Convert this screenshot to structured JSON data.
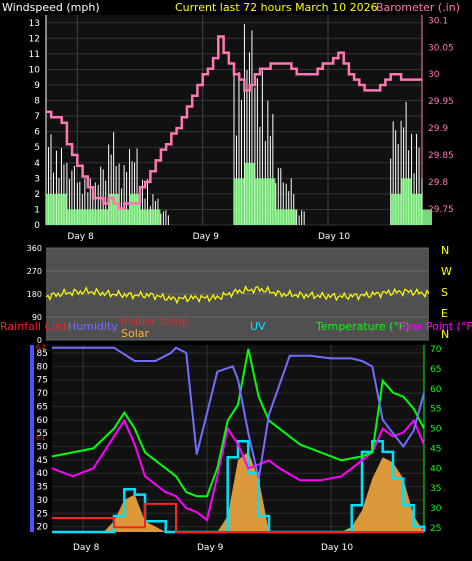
{
  "header": {
    "left_title": "Windspeed (mph)",
    "center_title": "Current last 72 hours March 10 2026",
    "right_title": "Barometer (.in)"
  },
  "legend": {
    "rainfall": "Rainfall (.in)",
    "humidity": "Humidity",
    "indoor_temp": "Indoor temp",
    "solar": "Solar",
    "uv": "UV",
    "temperature": "Temperature (°F)",
    "dew_point": "Dew Point (°F)"
  },
  "colors": {
    "background": "#000000",
    "plot_bg": "#111111",
    "title": "#ffff00",
    "barometer": "#ff78b4",
    "wind_gust": "#ffffff",
    "wind_avg": "#8cff8c",
    "direction": "#ffff00",
    "rainfall": "#ff2020",
    "humidity": "#7070ff",
    "indoor_temp": "#d83030",
    "solar": "#ffb040",
    "uv": "#00e0ff",
    "temperature": "#00ff00",
    "dew_point": "#ff00ff",
    "axis_blue": "#5050ff"
  },
  "chart_data": [
    {
      "type": "line",
      "title": "Windspeed (mph) / Barometer (.in)",
      "x_tick_labels": [
        "Day 8",
        "Day 9",
        "Day 10"
      ],
      "x_range_hours": [
        -72,
        0
      ],
      "left_axis": {
        "label": "Windspeed (mph)",
        "ticks": [
          0,
          1,
          2,
          3,
          4,
          5,
          6,
          7,
          8,
          9,
          10,
          11,
          12,
          13
        ],
        "range": [
          0,
          13.5
        ]
      },
      "right_axis": {
        "label": "Barometer (.in)",
        "ticks": [
          "29.75",
          "29.8",
          "29.85",
          "29.9",
          "29.95",
          "30",
          "30.05",
          "30.1"
        ],
        "range": [
          29.72,
          30.11
        ]
      },
      "series": [
        {
          "name": "Barometer (.in)",
          "axis": "right",
          "x": [
            -72,
            -71,
            -70,
            -69,
            -68,
            -67,
            -66,
            -65,
            -64,
            -63,
            -62,
            -61,
            -60,
            -59,
            -58,
            -57,
            -56,
            -55,
            -54,
            -53,
            -52,
            -51,
            -50,
            -49,
            -48,
            -47,
            -46,
            -45,
            -44,
            -43,
            -42,
            -41,
            -40,
            -39,
            -38,
            -37,
            -36,
            -35,
            -34,
            -33,
            -32,
            -31,
            -30,
            -29,
            -28,
            -27,
            -26,
            -25,
            -24,
            -23,
            -22,
            -21,
            -20,
            -19,
            -18,
            -17,
            -16,
            -15,
            -14,
            -13,
            -12,
            -11,
            -10,
            -9,
            -8,
            -7,
            -6,
            -5,
            -4,
            -3,
            -2,
            -1,
            0
          ],
          "values": [
            29.93,
            29.92,
            29.92,
            29.91,
            29.87,
            29.85,
            29.83,
            29.81,
            29.79,
            29.77,
            29.77,
            29.76,
            29.77,
            29.76,
            29.75,
            29.76,
            29.76,
            29.76,
            29.79,
            29.8,
            29.82,
            29.84,
            29.86,
            29.87,
            29.89,
            29.9,
            29.92,
            29.94,
            29.96,
            29.98,
            30,
            30.01,
            30.03,
            30.07,
            30.04,
            30.02,
            30,
            29.99,
            29.97,
            29.98,
            30.0,
            30.01,
            30.01,
            30.02,
            30.02,
            30.02,
            30.02,
            30.01,
            30.0,
            30.0,
            30.0,
            30.0,
            30.01,
            30.02,
            30.02,
            30.03,
            30.04,
            30.02,
            30.0,
            29.99,
            29.98,
            29.97,
            29.97,
            29.97,
            29.98,
            29.99,
            30.0,
            30.0,
            29.99,
            29.99,
            29.99,
            29.99,
            29.99
          ]
        },
        {
          "name": "Windspeed gust (mph)",
          "axis": "left",
          "x": [
            -72,
            -70,
            -68,
            -66,
            -64,
            -62,
            -60,
            -58,
            -56,
            -54,
            -52,
            -50,
            -48,
            -46,
            -44,
            -42,
            -40,
            -38,
            -36,
            -34,
            -32,
            -30,
            -28,
            -26,
            -24,
            -22,
            -20,
            -18,
            -16,
            -14,
            -12,
            -10,
            -8,
            -6,
            -4,
            -2,
            0
          ],
          "values": [
            6,
            5,
            4,
            3,
            3,
            4,
            6,
            4,
            5,
            3,
            2,
            1,
            0,
            0,
            0,
            0,
            0,
            0,
            10,
            13,
            10,
            8,
            4,
            3,
            1,
            0,
            0,
            0,
            0,
            0,
            0,
            0,
            0,
            7,
            8,
            6,
            3
          ]
        },
        {
          "name": "Windspeed average (mph)",
          "axis": "left",
          "x": [
            -72,
            -70,
            -68,
            -66,
            -64,
            -62,
            -60,
            -58,
            -56,
            -54,
            -52,
            -50,
            -48,
            -46,
            -44,
            -42,
            -40,
            -38,
            -36,
            -34,
            -32,
            -30,
            -28,
            -26,
            -24,
            -22,
            -20,
            -18,
            -16,
            -14,
            -12,
            -10,
            -8,
            -6,
            -4,
            -2,
            0
          ],
          "values": [
            2,
            2,
            1,
            1,
            1,
            1,
            2,
            1,
            2,
            1,
            1,
            0,
            0,
            0,
            0,
            0,
            0,
            0,
            3,
            4,
            3,
            3,
            1,
            1,
            0,
            0,
            0,
            0,
            0,
            0,
            0,
            0,
            0,
            2,
            3,
            2,
            1
          ]
        }
      ]
    },
    {
      "type": "line",
      "title": "Wind direction",
      "x_tick_labels": [
        "Day 8",
        "Day 9",
        "Day 10"
      ],
      "left_axis": {
        "ticks": [
          0,
          90,
          180,
          270,
          360
        ],
        "range": [
          0,
          360
        ]
      },
      "right_axis_labels": [
        "N",
        "W",
        "S",
        "E",
        "N"
      ],
      "series": [
        {
          "name": "Wind direction",
          "x": [
            -72,
            -68,
            -64,
            -60,
            -56,
            -52,
            -48,
            -44,
            -40,
            -36,
            -32,
            -28,
            -24,
            -20,
            -16,
            -12,
            -8,
            -4,
            0
          ],
          "values": [
            170,
            185,
            190,
            180,
            175,
            175,
            160,
            165,
            165,
            190,
            200,
            180,
            175,
            172,
            170,
            175,
            185,
            190,
            180
          ]
        }
      ]
    },
    {
      "type": "line",
      "title": "Temperature / Humidity / Rain / Solar",
      "x_tick_labels": [
        "Day 8",
        "Day 9",
        "Day 10"
      ],
      "left_axis_humidity": {
        "ticks": [
          20,
          25,
          30,
          35,
          40,
          45,
          50,
          55,
          60,
          65,
          70,
          75,
          80,
          85
        ],
        "range": [
          18,
          88
        ]
      },
      "left_axis_rain": {
        "ticks": [
          "0.1",
          "0.2"
        ]
      },
      "right_axis": {
        "label": "Temperature (°F)",
        "ticks": [
          25,
          30,
          35,
          40,
          45,
          50,
          55,
          60,
          65,
          70
        ],
        "range": [
          24,
          71
        ]
      },
      "series": [
        {
          "name": "Humidity",
          "axis": "left",
          "x": [
            -72,
            -66,
            -60,
            -56,
            -52,
            -49,
            -48,
            -46,
            -44,
            -40,
            -37,
            -36,
            -34,
            -32,
            -30,
            -26,
            -22,
            -18,
            -14,
            -12,
            -10,
            -8,
            -6,
            -4,
            -2,
            0
          ],
          "values": [
            87,
            87,
            87,
            82,
            82,
            85,
            87,
            85,
            47,
            78,
            80,
            75,
            55,
            38,
            62,
            84,
            84,
            83,
            83,
            82,
            80,
            60,
            55,
            50,
            56,
            70
          ]
        },
        {
          "name": "Temperature (°F)",
          "axis": "right",
          "x": [
            -72,
            -68,
            -64,
            -60,
            -58,
            -56,
            -54,
            -52,
            -50,
            -48,
            -46,
            -44,
            -42,
            -40,
            -38,
            -36,
            -34,
            -32,
            -30,
            -28,
            -24,
            -20,
            -16,
            -12,
            -10,
            -8,
            -6,
            -4,
            -2,
            0
          ],
          "values": [
            43,
            44,
            45,
            50,
            54,
            50,
            44,
            42,
            40,
            38,
            34,
            33,
            33,
            40,
            52,
            56,
            70,
            58,
            52,
            50,
            46,
            44,
            42,
            43,
            44,
            62,
            59,
            58,
            55,
            50
          ]
        },
        {
          "name": "Dew Point (°F)",
          "axis": "right",
          "x": [
            -72,
            -68,
            -64,
            -60,
            -58,
            -56,
            -54,
            -52,
            -50,
            -48,
            -46,
            -44,
            -42,
            -40,
            -38,
            -36,
            -34,
            -32,
            -30,
            -28,
            -24,
            -20,
            -16,
            -12,
            -10,
            -8,
            -6,
            -4,
            -2,
            0
          ],
          "values": [
            40,
            38,
            40,
            48,
            52,
            46,
            38,
            36,
            34,
            33,
            30,
            29,
            27,
            38,
            50,
            46,
            40,
            41,
            42,
            40,
            37,
            37,
            38,
            42,
            44,
            50,
            48,
            49,
            52,
            46
          ]
        },
        {
          "name": "Solar",
          "axis": "left",
          "x": [
            -72,
            -62,
            -60,
            -58,
            -56,
            -54,
            -50,
            -40,
            -38,
            -36,
            -34,
            -32,
            -30,
            -26,
            -16,
            -14,
            -12,
            -10,
            -8,
            -6,
            -4,
            -2,
            0
          ],
          "values": [
            18,
            18,
            22,
            30,
            32,
            22,
            18,
            18,
            24,
            45,
            48,
            38,
            18,
            18,
            18,
            20,
            26,
            38,
            46,
            44,
            38,
            24,
            18
          ]
        },
        {
          "name": "UV",
          "axis": "left",
          "x": [
            -72,
            -62,
            -60,
            -58,
            -56,
            -54,
            -50,
            -40,
            -38,
            -36,
            -34,
            -32,
            -30,
            -26,
            -16,
            -14,
            -12,
            -10,
            -8,
            -6,
            -4,
            -2,
            0
          ],
          "values": [
            18,
            18,
            24,
            34,
            32,
            22,
            18,
            18,
            46,
            52,
            40,
            24,
            18,
            18,
            18,
            28,
            48,
            52,
            48,
            38,
            28,
            20,
            18
          ]
        },
        {
          "name": "Rainfall (.in)",
          "axis": "left",
          "x": [
            -72,
            -66,
            -60,
            -54,
            -50,
            -49,
            -48,
            -40,
            -30,
            -20,
            -10,
            0
          ],
          "values": [
            0.015,
            0.015,
            0.005,
            0.03,
            0.03,
            0.03,
            0,
            0,
            0,
            0,
            0,
            0
          ]
        }
      ]
    }
  ]
}
